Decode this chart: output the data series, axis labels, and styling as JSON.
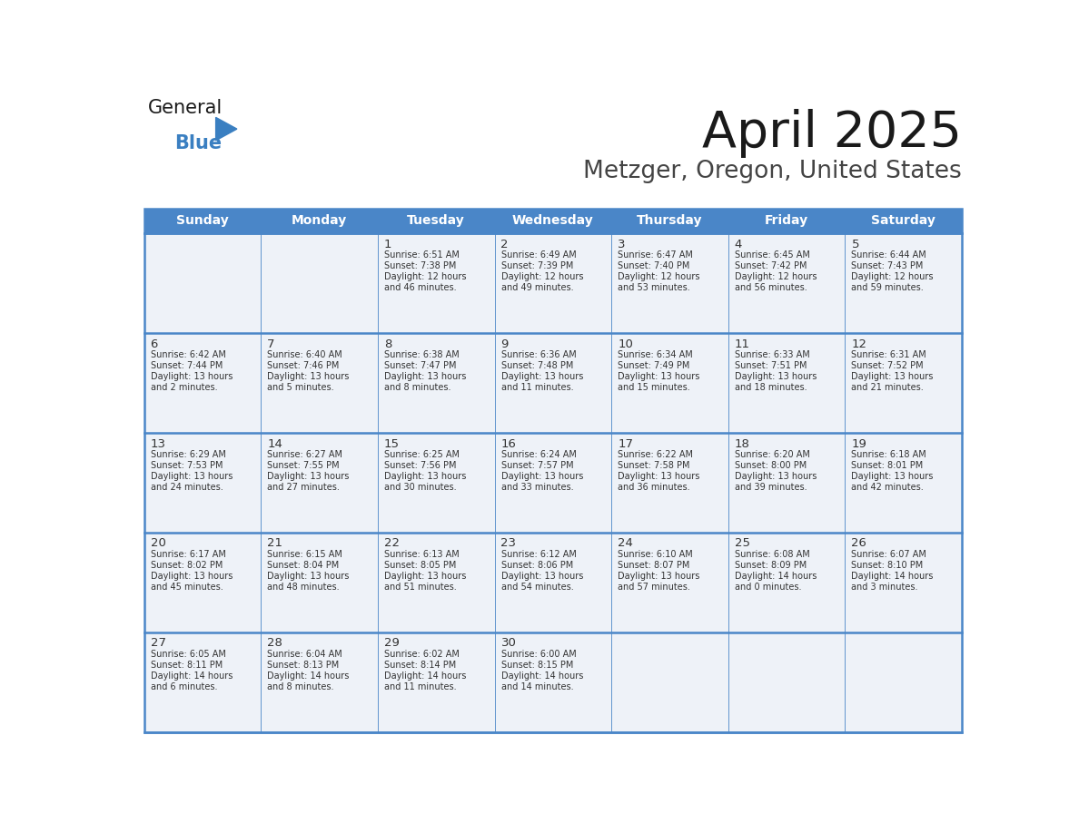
{
  "title": "April 2025",
  "subtitle": "Metzger, Oregon, United States",
  "header_bg": "#4a86c8",
  "header_text_color": "#ffffff",
  "cell_bg": "#eef2f8",
  "cell_bg_white": "#ffffff",
  "border_color": "#4a86c8",
  "row_divider_color": "#4a86c8",
  "day_headers": [
    "Sunday",
    "Monday",
    "Tuesday",
    "Wednesday",
    "Thursday",
    "Friday",
    "Saturday"
  ],
  "title_color": "#1a1a1a",
  "subtitle_color": "#444444",
  "day_number_color": "#333333",
  "cell_text_color": "#333333",
  "days": [
    {
      "date": 1,
      "col": 2,
      "row": 0,
      "sunrise": "6:51 AM",
      "sunset": "7:38 PM",
      "daylight": "12 hours and 46 minutes"
    },
    {
      "date": 2,
      "col": 3,
      "row": 0,
      "sunrise": "6:49 AM",
      "sunset": "7:39 PM",
      "daylight": "12 hours and 49 minutes"
    },
    {
      "date": 3,
      "col": 4,
      "row": 0,
      "sunrise": "6:47 AM",
      "sunset": "7:40 PM",
      "daylight": "12 hours and 53 minutes"
    },
    {
      "date": 4,
      "col": 5,
      "row": 0,
      "sunrise": "6:45 AM",
      "sunset": "7:42 PM",
      "daylight": "12 hours and 56 minutes"
    },
    {
      "date": 5,
      "col": 6,
      "row": 0,
      "sunrise": "6:44 AM",
      "sunset": "7:43 PM",
      "daylight": "12 hours and 59 minutes"
    },
    {
      "date": 6,
      "col": 0,
      "row": 1,
      "sunrise": "6:42 AM",
      "sunset": "7:44 PM",
      "daylight": "13 hours and 2 minutes"
    },
    {
      "date": 7,
      "col": 1,
      "row": 1,
      "sunrise": "6:40 AM",
      "sunset": "7:46 PM",
      "daylight": "13 hours and 5 minutes"
    },
    {
      "date": 8,
      "col": 2,
      "row": 1,
      "sunrise": "6:38 AM",
      "sunset": "7:47 PM",
      "daylight": "13 hours and 8 minutes"
    },
    {
      "date": 9,
      "col": 3,
      "row": 1,
      "sunrise": "6:36 AM",
      "sunset": "7:48 PM",
      "daylight": "13 hours and 11 minutes"
    },
    {
      "date": 10,
      "col": 4,
      "row": 1,
      "sunrise": "6:34 AM",
      "sunset": "7:49 PM",
      "daylight": "13 hours and 15 minutes"
    },
    {
      "date": 11,
      "col": 5,
      "row": 1,
      "sunrise": "6:33 AM",
      "sunset": "7:51 PM",
      "daylight": "13 hours and 18 minutes"
    },
    {
      "date": 12,
      "col": 6,
      "row": 1,
      "sunrise": "6:31 AM",
      "sunset": "7:52 PM",
      "daylight": "13 hours and 21 minutes"
    },
    {
      "date": 13,
      "col": 0,
      "row": 2,
      "sunrise": "6:29 AM",
      "sunset": "7:53 PM",
      "daylight": "13 hours and 24 minutes"
    },
    {
      "date": 14,
      "col": 1,
      "row": 2,
      "sunrise": "6:27 AM",
      "sunset": "7:55 PM",
      "daylight": "13 hours and 27 minutes"
    },
    {
      "date": 15,
      "col": 2,
      "row": 2,
      "sunrise": "6:25 AM",
      "sunset": "7:56 PM",
      "daylight": "13 hours and 30 minutes"
    },
    {
      "date": 16,
      "col": 3,
      "row": 2,
      "sunrise": "6:24 AM",
      "sunset": "7:57 PM",
      "daylight": "13 hours and 33 minutes"
    },
    {
      "date": 17,
      "col": 4,
      "row": 2,
      "sunrise": "6:22 AM",
      "sunset": "7:58 PM",
      "daylight": "13 hours and 36 minutes"
    },
    {
      "date": 18,
      "col": 5,
      "row": 2,
      "sunrise": "6:20 AM",
      "sunset": "8:00 PM",
      "daylight": "13 hours and 39 minutes"
    },
    {
      "date": 19,
      "col": 6,
      "row": 2,
      "sunrise": "6:18 AM",
      "sunset": "8:01 PM",
      "daylight": "13 hours and 42 minutes"
    },
    {
      "date": 20,
      "col": 0,
      "row": 3,
      "sunrise": "6:17 AM",
      "sunset": "8:02 PM",
      "daylight": "13 hours and 45 minutes"
    },
    {
      "date": 21,
      "col": 1,
      "row": 3,
      "sunrise": "6:15 AM",
      "sunset": "8:04 PM",
      "daylight": "13 hours and 48 minutes"
    },
    {
      "date": 22,
      "col": 2,
      "row": 3,
      "sunrise": "6:13 AM",
      "sunset": "8:05 PM",
      "daylight": "13 hours and 51 minutes"
    },
    {
      "date": 23,
      "col": 3,
      "row": 3,
      "sunrise": "6:12 AM",
      "sunset": "8:06 PM",
      "daylight": "13 hours and 54 minutes"
    },
    {
      "date": 24,
      "col": 4,
      "row": 3,
      "sunrise": "6:10 AM",
      "sunset": "8:07 PM",
      "daylight": "13 hours and 57 minutes"
    },
    {
      "date": 25,
      "col": 5,
      "row": 3,
      "sunrise": "6:08 AM",
      "sunset": "8:09 PM",
      "daylight": "14 hours and 0 minutes"
    },
    {
      "date": 26,
      "col": 6,
      "row": 3,
      "sunrise": "6:07 AM",
      "sunset": "8:10 PM",
      "daylight": "14 hours and 3 minutes"
    },
    {
      "date": 27,
      "col": 0,
      "row": 4,
      "sunrise": "6:05 AM",
      "sunset": "8:11 PM",
      "daylight": "14 hours and 6 minutes"
    },
    {
      "date": 28,
      "col": 1,
      "row": 4,
      "sunrise": "6:04 AM",
      "sunset": "8:13 PM",
      "daylight": "14 hours and 8 minutes"
    },
    {
      "date": 29,
      "col": 2,
      "row": 4,
      "sunrise": "6:02 AM",
      "sunset": "8:14 PM",
      "daylight": "14 hours and 11 minutes"
    },
    {
      "date": 30,
      "col": 3,
      "row": 4,
      "sunrise": "6:00 AM",
      "sunset": "8:15 PM",
      "daylight": "14 hours and 14 minutes"
    }
  ],
  "n_rows": 5,
  "n_cols": 7,
  "logo_general_color": "#1a1a1a",
  "logo_blue_color": "#3a7fc1",
  "logo_triangle_color": "#3a7fc1"
}
